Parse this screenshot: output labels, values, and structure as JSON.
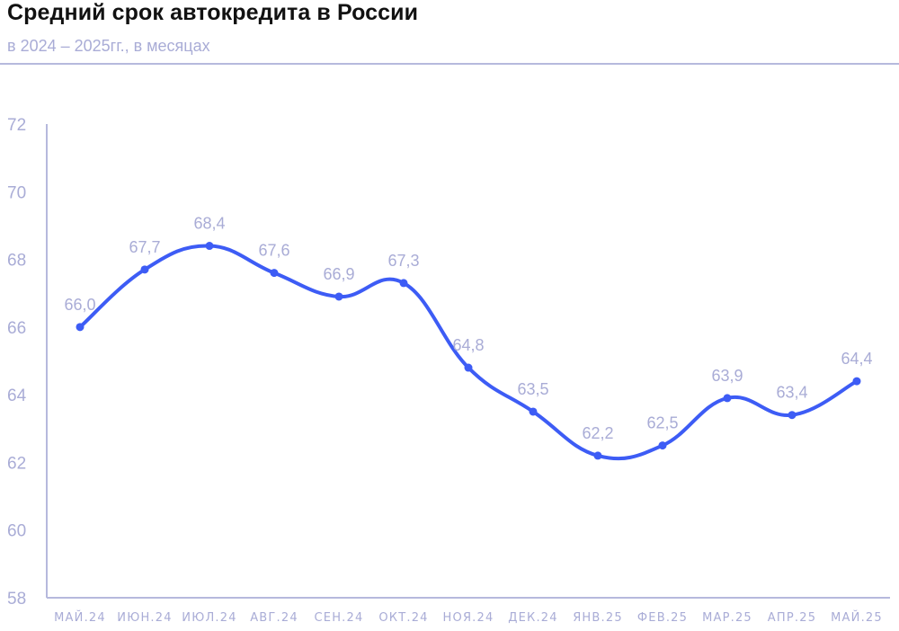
{
  "header": {
    "title": "Средний срок автокредита в России",
    "subtitle": "в 2024 – 2025гг., в месяцах"
  },
  "colors": {
    "line": "#3d5cf5",
    "axis": "#b6b9dd",
    "label": "#a9acd6",
    "title": "#111111"
  },
  "chart_data": {
    "type": "line",
    "title": "Средний срок автокредита в России",
    "subtitle": "в 2024 – 2025гг., в месяцах",
    "xlabel": "",
    "ylabel": "",
    "ylim": [
      58,
      72
    ],
    "yticks": [
      58,
      60,
      62,
      64,
      66,
      68,
      70,
      72
    ],
    "grid": false,
    "legend": null,
    "categories": [
      "МАЙ.24",
      "ИЮН.24",
      "ИЮЛ.24",
      "АВГ.24",
      "СЕН.24",
      "ОКТ.24",
      "НОЯ.24",
      "ДЕК.24",
      "ЯНВ.25",
      "ФЕВ.25",
      "МАР.25",
      "АПР.25",
      "МАЙ.25"
    ],
    "series": [
      {
        "name": "Средний срок автокредита",
        "values": [
          66.0,
          67.7,
          68.4,
          67.6,
          66.9,
          67.3,
          64.8,
          63.5,
          62.2,
          62.5,
          63.9,
          63.4,
          64.4
        ],
        "labels": [
          "66,0",
          "67,7",
          "68,4",
          "67,6",
          "66,9",
          "67,3",
          "64,8",
          "63,5",
          "62,2",
          "62,5",
          "63,9",
          "63,4",
          "64,4"
        ]
      }
    ]
  }
}
